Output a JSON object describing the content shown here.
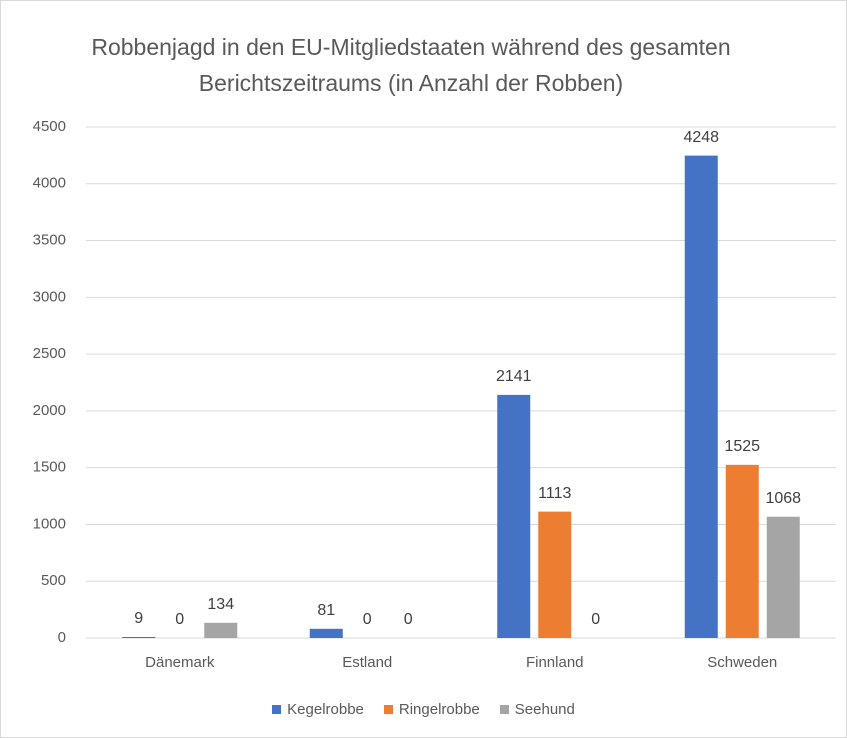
{
  "chart_data": {
    "type": "bar",
    "title": "Robbenjagd in den EU-Mitgliedstaaten während des gesamten Berichtszeitraums (in Anzahl der Robben)",
    "categories": [
      "Dänemark",
      "Estland",
      "Finnland",
      "Schweden"
    ],
    "series": [
      {
        "name": "Kegelrobbe",
        "color": "#4472c4",
        "values": [
          9,
          81,
          2141,
          4248
        ]
      },
      {
        "name": "Ringelrobbe",
        "color": "#ed7d31",
        "values": [
          0,
          0,
          1113,
          1525
        ]
      },
      {
        "name": "Seehund",
        "color": "#a5a5a5",
        "values": [
          134,
          0,
          0,
          1068
        ]
      }
    ],
    "ylim": [
      0,
      4500
    ],
    "yticks": [
      0,
      500,
      1000,
      1500,
      2000,
      2500,
      3000,
      3500,
      4000,
      4500
    ],
    "grid": true,
    "legend": "bottom"
  }
}
